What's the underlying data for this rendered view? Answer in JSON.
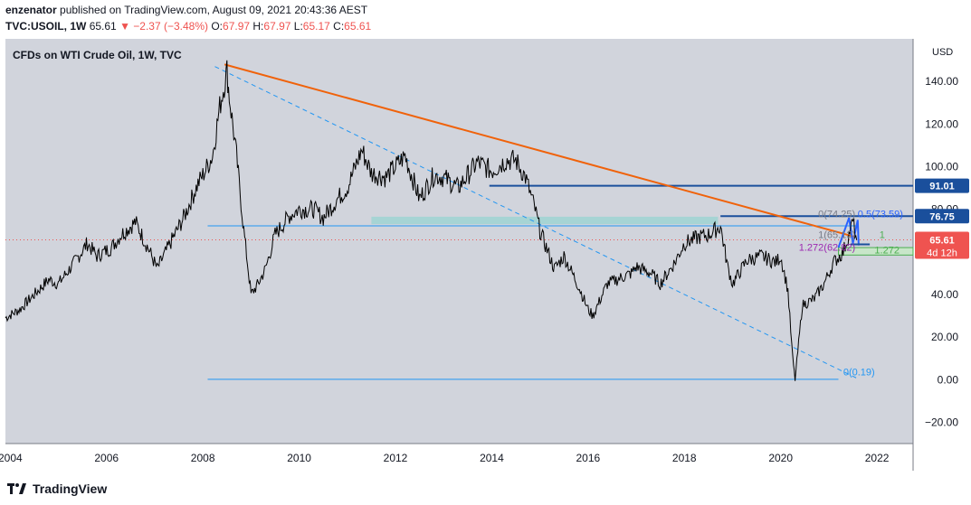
{
  "header": {
    "publisher": "enzenator",
    "published_text": "published on TradingView.com, August 09, 2021 20:43:36 AEST",
    "symbol": "TVC:USOIL, 1W",
    "last": "65.61",
    "change": "▼ −2.37 (−3.48%)",
    "o_label": "O:",
    "o_val": "67.97",
    "h_label": "H:",
    "h_val": "67.97",
    "l_label": "L:",
    "l_val": "65.17",
    "c_label": "C:",
    "c_val": "65.61"
  },
  "footer": {
    "brand": "TradingView"
  },
  "chart_data": {
    "type": "line",
    "title": "CFDs on WTI Crude Oil, 1W, TVC",
    "currency_label": "USD",
    "x_ticks": [
      "2004",
      "2006",
      "2008",
      "2010",
      "2012",
      "2014",
      "2016",
      "2018",
      "2020",
      "2022"
    ],
    "y_ticks": [
      "140.00",
      "120.00",
      "100.00",
      "80.00",
      "60.00",
      "40.00",
      "20.00",
      "0.00",
      "−20.00"
    ],
    "ylim": [
      -30,
      160
    ],
    "xlim": [
      2003.9,
      2022.75
    ],
    "grid": false,
    "series": [
      {
        "x": [
          2003.9,
          2004.2,
          2004.5,
          2004.8,
          2005.0,
          2005.3,
          2005.6,
          2005.8,
          2006.1,
          2006.3,
          2006.6,
          2006.9,
          2007.05,
          2007.3,
          2007.6,
          2007.9,
          2008.0,
          2008.2,
          2008.35,
          2008.5,
          2008.55,
          2008.7,
          2008.85,
          2009.0,
          2009.15,
          2009.3,
          2009.5,
          2009.8,
          2010.0,
          2010.3,
          2010.5,
          2010.8,
          2011.0,
          2011.3,
          2011.5,
          2011.8,
          2012.0,
          2012.2,
          2012.5,
          2012.8,
          2013.0,
          2013.3,
          2013.7,
          2014.0,
          2014.3,
          2014.5,
          2014.7,
          2014.9,
          2015.0,
          2015.3,
          2015.5,
          2015.8,
          2016.0,
          2016.1,
          2016.4,
          2016.6,
          2016.9,
          2017.0,
          2017.3,
          2017.5,
          2017.8,
          2018.0,
          2018.3,
          2018.5,
          2018.75,
          2018.9,
          2019.0,
          2019.3,
          2019.6,
          2019.9,
          2020.0,
          2020.15,
          2020.25,
          2020.3,
          2020.45,
          2020.7,
          2020.9,
          2021.1,
          2021.3,
          2021.5,
          2021.58
        ],
        "y": [
          29,
          33,
          40,
          47,
          45,
          54,
          64,
          58,
          62,
          68,
          74,
          60,
          52,
          63,
          76,
          92,
          96,
          105,
          128,
          145,
          133,
          105,
          70,
          40,
          45,
          52,
          68,
          77,
          80,
          80,
          76,
          85,
          90,
          108,
          97,
          95,
          100,
          105,
          85,
          96,
          95,
          90,
          102,
          98,
          103,
          103,
          95,
          80,
          70,
          52,
          58,
          44,
          33,
          30,
          45,
          47,
          50,
          53,
          50,
          45,
          55,
          64,
          67,
          68,
          72,
          53,
          45,
          56,
          58,
          55,
          58,
          42,
          10,
          0,
          35,
          38,
          45,
          55,
          60,
          74,
          65.61
        ]
      }
    ],
    "horizontal_levels": [
      "91.01",
      "76.75",
      "72.2"
    ],
    "annotations": [
      {
        "label": "91.01",
        "color": "#1a4f9c"
      },
      {
        "label": "76.75",
        "color": "#1a4f9c"
      },
      {
        "label": "65.61",
        "color": "#ef5350"
      },
      {
        "label": "4d 12h",
        "color": "#ef5350"
      },
      {
        "label": "0(74.25)",
        "color": "#787b86"
      },
      {
        "label": "0.5(73.59)",
        "color": "#2962ff"
      },
      {
        "label": "1(65.13)",
        "color": "#787b86"
      },
      {
        "label": "1.272(62.82)",
        "color": "#9c27b0"
      },
      {
        "label": "1",
        "color": "#4caf50"
      },
      {
        "label": "1.272",
        "color": "#4caf50"
      },
      {
        "label": "0(0.19)",
        "color": "#2196f3"
      }
    ]
  },
  "colors": {
    "plot_bg": "#d1d4dc",
    "price_line": "#000000",
    "trend_orange": "#f0620a",
    "trend_dashed": "#2196f3",
    "level_blue": "#1a4f9c",
    "zone_teal": "#a6d4d4",
    "price_red": "#ef5350"
  }
}
